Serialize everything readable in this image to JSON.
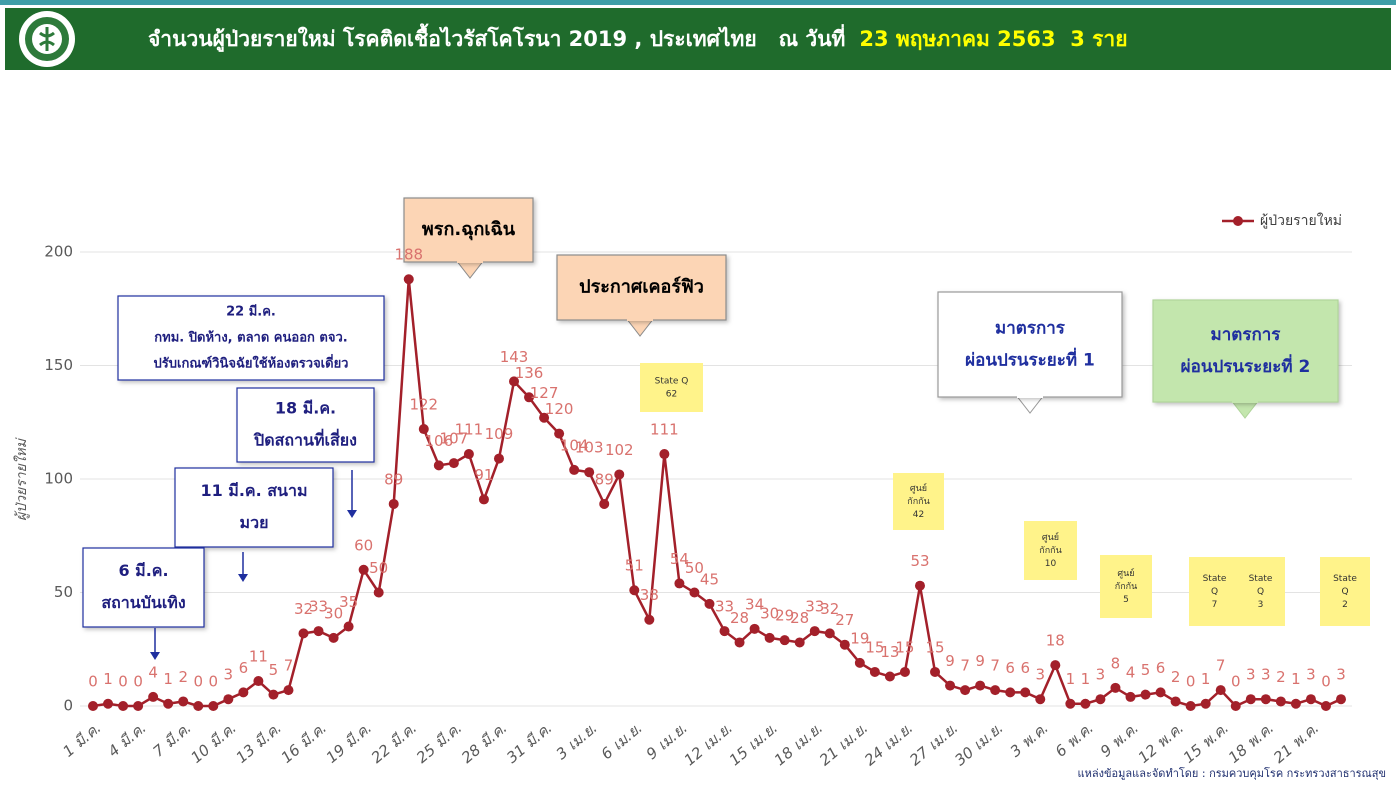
{
  "chart_data": {
    "type": "line",
    "title": "จำนวนผู้ป่วยรายใหม่ โรคติดเชื้อไวรัสโคโรนา 2019 , ประเทศไทย   ณ วันที่",
    "title_highlight": "23 พฤษภาคม 2563  3 ราย",
    "y_label": "ผู้ป่วยรายใหม่",
    "source": "แหล่งข้อมูลและจัดทำโดย : กรมควบคุมโรค กระทรวงสาธารณสุข",
    "legend_position": "top-right",
    "grid": true,
    "ylim": [
      0,
      200
    ],
    "yticks": [
      0,
      50,
      100,
      150,
      200
    ],
    "categories": [
      "1 มี.ค.",
      null,
      null,
      "4 มี.ค.",
      null,
      null,
      "7 มี.ค.",
      null,
      null,
      "10 มี.ค.",
      null,
      null,
      "13 มี.ค.",
      null,
      null,
      "16 มี.ค.",
      null,
      null,
      "19 มี.ค.",
      null,
      null,
      "22 มี.ค.",
      null,
      null,
      "25 มี.ค.",
      null,
      null,
      "28 มี.ค.",
      null,
      null,
      "31 มี.ค.",
      null,
      null,
      "3 เม.ย.",
      null,
      null,
      "6 เม.ย.",
      null,
      null,
      "9 เม.ย.",
      null,
      null,
      "12 เม.ย.",
      null,
      null,
      "15 เม.ย.",
      null,
      null,
      "18 เม.ย.",
      null,
      null,
      "21 เม.ย.",
      null,
      null,
      "24 เม.ย.",
      null,
      null,
      "27 เม.ย.",
      null,
      null,
      "30 เม.ย.",
      null,
      null,
      "3 พ.ค.",
      null,
      null,
      "6 พ.ค.",
      null,
      null,
      "9 พ.ค.",
      null,
      null,
      "12 พ.ค.",
      null,
      null,
      "15 พ.ค.",
      null,
      null,
      "18 พ.ค.",
      null,
      null,
      "21 พ.ค.",
      null,
      null
    ],
    "series": [
      {
        "name": "ผู้ป่วยรายใหม่",
        "color": "#a3202a",
        "values": [
          0,
          1,
          0,
          0,
          4,
          1,
          2,
          0,
          0,
          3,
          6,
          11,
          5,
          7,
          32,
          33,
          30,
          35,
          60,
          50,
          89,
          188,
          122,
          106,
          107,
          111,
          91,
          109,
          143,
          136,
          127,
          120,
          104,
          103,
          89,
          102,
          51,
          38,
          111,
          54,
          50,
          45,
          33,
          28,
          34,
          30,
          29,
          28,
          33,
          32,
          27,
          19,
          15,
          13,
          15,
          53,
          15,
          9,
          7,
          9,
          7,
          6,
          6,
          3,
          18,
          1,
          1,
          3,
          8,
          4,
          5,
          6,
          2,
          0,
          1,
          7,
          0,
          3,
          3,
          2,
          1,
          3,
          0,
          3
        ]
      }
    ],
    "annotations": [
      {
        "lines": [
          "พรก.ฉุกเฉิน"
        ]
      },
      {
        "lines": [
          "ประกาศเคอร์ฟิว"
        ]
      },
      {
        "lines": [
          "22 มี.ค.",
          "กทม. ปิดห้าง, ตลาด คนออก ตจว.",
          "ปรับเกณฑ์วินิจฉัยใช้ห้องตรวจเดี่ยว"
        ]
      },
      {
        "lines": [
          "18 มี.ค.",
          "ปิดสถานที่เสี่ยง"
        ]
      },
      {
        "lines": [
          "11 มี.ค. สนาม",
          "มวย"
        ]
      },
      {
        "lines": [
          "6 มี.ค.",
          "สถานบันเทิง"
        ]
      },
      {
        "lines": [
          "มาตรการ",
          "ผ่อนปรนระยะที่ 1"
        ]
      },
      {
        "lines": [
          "มาตรการ",
          "ผ่อนปรนระยะที่ 2"
        ]
      },
      {
        "lines": [
          "State Q",
          "62"
        ]
      },
      {
        "lines": [
          "ศูนย์",
          "กักกัน",
          "42"
        ]
      },
      {
        "lines": [
          "ศูนย์",
          "กักกัน",
          "10"
        ]
      },
      {
        "lines": [
          "ศูนย์",
          "กักกัน",
          "5"
        ]
      },
      {
        "lines": [
          "State",
          "Q",
          "7"
        ]
      },
      {
        "lines": [
          "State",
          "Q",
          "3"
        ]
      },
      {
        "lines": [
          "State",
          "Q",
          "2"
        ]
      }
    ]
  }
}
